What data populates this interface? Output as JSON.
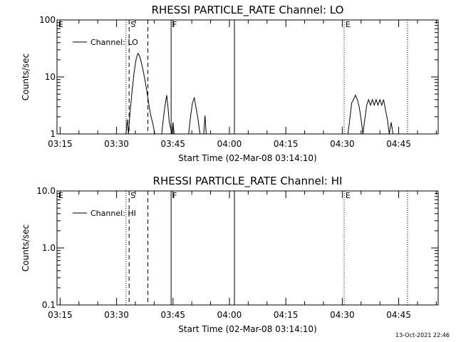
{
  "footer": {
    "timestamp": "13-Oct-2021 22:46"
  },
  "chart_data": [
    {
      "type": "line",
      "title": "RHESSI PARTICLE_RATE Channel: LO",
      "xlabel": "Start Time (02-Mar-08 03:14:10)",
      "ylabel": "Counts/sec",
      "xlim": [
        "03:14:10",
        "04:55:30"
      ],
      "yscale": "log",
      "ylim": [
        1,
        100
      ],
      "x_tick_labels": [
        "03:15",
        "03:30",
        "03:45",
        "04:00",
        "04:15",
        "04:30",
        "04:45"
      ],
      "y_tick_labels": [
        "1",
        "10",
        "100"
      ],
      "y_tick_values": [
        1,
        10,
        100
      ],
      "legend": {
        "entries": [
          "Channel: LO"
        ],
        "placement": "top-left"
      },
      "markers": [
        {
          "label": "E",
          "time": "03:14:10",
          "style": "dotted"
        },
        {
          "label": "S",
          "time": "03:33:20",
          "style": "dashed"
        },
        {
          "label": "F",
          "time": "03:44:30",
          "style": "solid"
        },
        {
          "label": "E",
          "time": "04:30:30",
          "style": "dotted"
        }
      ],
      "vlines": [
        {
          "time": "03:32:30",
          "style": "dotted"
        },
        {
          "time": "03:38:20",
          "style": "dashed"
        },
        {
          "time": "04:01:20",
          "style": "solid"
        },
        {
          "time": "04:47:20",
          "style": "dotted"
        }
      ],
      "series": [
        {
          "name": "Channel: LO",
          "segments": [
            {
              "x": [
                "03:32:30",
                "03:32:50",
                "03:33:10",
                "03:33:30",
                "03:33:50",
                "03:34:10",
                "03:34:40",
                "03:35:10",
                "03:35:40",
                "03:36:10",
                "03:36:40",
                "03:37:10",
                "03:37:40",
                "03:38:10",
                "03:38:40",
                "03:39:10",
                "03:39:40",
                "03:40:10"
              ],
              "y": [
                1.0,
                1.8,
                1.0,
                2.1,
                3.5,
                6.0,
                12.0,
                20.0,
                26.0,
                23.0,
                17.0,
                12.0,
                8.0,
                5.0,
                3.0,
                2.0,
                1.5,
                1.0
              ]
            },
            {
              "x": [
                "03:42:00",
                "03:42:20",
                "03:42:40",
                "03:43:00",
                "03:43:20",
                "03:43:40",
                "03:44:00",
                "03:44:20",
                "03:44:40"
              ],
              "y": [
                1.0,
                1.6,
                2.5,
                3.5,
                4.8,
                3.0,
                1.6,
                1.3,
                1.0
              ]
            },
            {
              "x": [
                "03:44:40",
                "03:45:00",
                "03:45:20"
              ],
              "y": [
                1.0,
                1.6,
                1.0
              ]
            },
            {
              "x": [
                "03:49:10",
                "03:49:40",
                "03:50:10",
                "03:50:40",
                "03:51:10",
                "03:51:40",
                "03:52:10"
              ],
              "y": [
                1.0,
                2.0,
                3.5,
                4.3,
                2.8,
                1.8,
                1.0
              ]
            },
            {
              "x": [
                "03:53:10",
                "03:53:30",
                "03:53:50"
              ],
              "y": [
                1.0,
                2.1,
                1.0
              ]
            },
            {
              "x": [
                "04:31:30",
                "04:32:00",
                "04:32:30",
                "04:33:00",
                "04:33:30",
                "04:34:00",
                "04:34:30",
                "04:35:00",
                "04:35:30",
                "04:36:00",
                "04:36:30",
                "04:37:00",
                "04:37:30",
                "04:38:00",
                "04:38:30",
                "04:39:00",
                "04:39:30",
                "04:40:00",
                "04:40:30",
                "04:41:00",
                "04:41:30",
                "04:42:00",
                "04:42:30",
                "04:43:00",
                "04:43:30"
              ],
              "y": [
                1.0,
                1.8,
                3.5,
                4.0,
                4.8,
                4.0,
                3.0,
                1.8,
                1.0,
                1.8,
                3.2,
                4.0,
                3.2,
                4.0,
                3.2,
                4.0,
                3.2,
                4.0,
                3.2,
                4.0,
                2.6,
                1.8,
                1.0,
                1.6,
                1.0
              ]
            }
          ]
        }
      ]
    },
    {
      "type": "line",
      "title": "RHESSI PARTICLE_RATE Channel: HI",
      "xlabel": "Start Time (02-Mar-08 03:14:10)",
      "ylabel": "Counts/sec",
      "xlim": [
        "03:14:10",
        "04:55:30"
      ],
      "yscale": "log",
      "ylim": [
        0.1,
        10
      ],
      "x_tick_labels": [
        "03:15",
        "03:30",
        "03:45",
        "04:00",
        "04:15",
        "04:30",
        "04:45"
      ],
      "y_tick_labels": [
        "0.1",
        "1.0",
        "10.0"
      ],
      "y_tick_values": [
        0.1,
        1,
        10
      ],
      "legend": {
        "entries": [
          "Channel: HI"
        ],
        "placement": "top-left"
      },
      "markers": [
        {
          "label": "E",
          "time": "03:14:10",
          "style": "dotted"
        },
        {
          "label": "S",
          "time": "03:33:20",
          "style": "dashed"
        },
        {
          "label": "F",
          "time": "03:44:30",
          "style": "solid"
        },
        {
          "label": "E",
          "time": "04:30:30",
          "style": "dotted"
        }
      ],
      "vlines": [
        {
          "time": "03:32:30",
          "style": "dotted"
        },
        {
          "time": "03:38:20",
          "style": "dashed"
        },
        {
          "time": "04:01:20",
          "style": "solid"
        },
        {
          "time": "04:47:20",
          "style": "dotted"
        }
      ],
      "series": [
        {
          "name": "Channel: HI",
          "segments": []
        }
      ]
    }
  ]
}
